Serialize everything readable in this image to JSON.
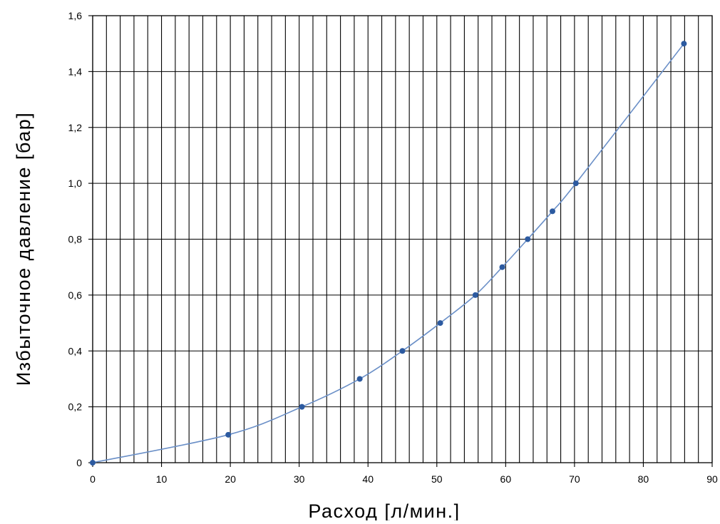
{
  "chart_data": {
    "type": "line",
    "title": "",
    "xlabel": "Расход [л/мин.]",
    "ylabel": "Избыточное давление [бар]",
    "xlim": [
      0,
      90
    ],
    "ylim": [
      0,
      1.6
    ],
    "x_ticks": [
      0,
      10,
      20,
      30,
      40,
      50,
      60,
      70,
      80,
      90
    ],
    "x_tick_labels": [
      "0",
      "10",
      "20",
      "30",
      "40",
      "50",
      "60",
      "70",
      "80",
      "90"
    ],
    "y_ticks": [
      0,
      0.2,
      0.4,
      0.6,
      0.8,
      1.0,
      1.2,
      1.4,
      1.6
    ],
    "y_tick_labels": [
      "0",
      "0,2",
      "0,4",
      "0,6",
      "0,8",
      "1,0",
      "1,2",
      "1,4",
      "1,6"
    ],
    "grid": {
      "vertical_step": 2,
      "horizontal_step": 0.2
    },
    "legend": "none",
    "series": [
      {
        "color": "#2c5aa0",
        "line_color": "#6a8fc7",
        "x": [
          0,
          19.7,
          30.4,
          38.8,
          45.0,
          50.5,
          55.6,
          59.5,
          63.2,
          66.8,
          70.2,
          85.9
        ],
        "y": [
          0,
          0.1,
          0.2,
          0.3,
          0.4,
          0.5,
          0.6,
          0.7,
          0.8,
          0.9,
          1.0,
          1.5
        ]
      }
    ]
  }
}
